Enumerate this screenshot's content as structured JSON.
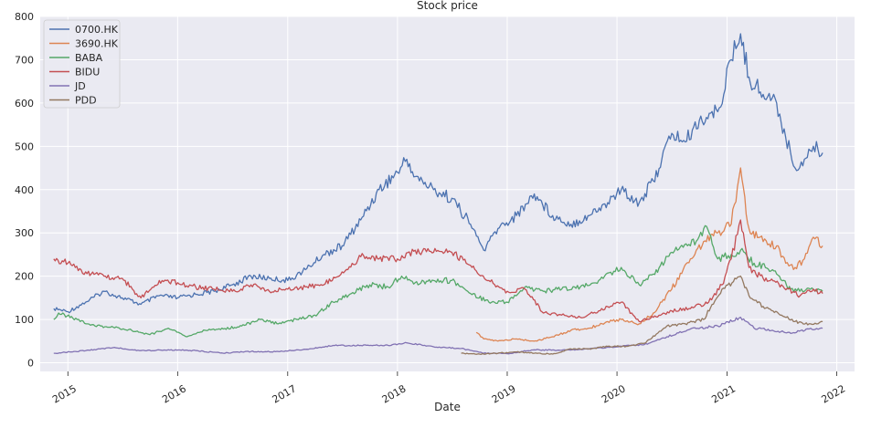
{
  "chart_data": {
    "type": "line",
    "title": "Stock price",
    "xlabel": "Date",
    "ylabel": "",
    "xlim": [
      "2014-10-01",
      "2022-03-01"
    ],
    "ylim": [
      -20,
      800
    ],
    "yticks": [
      0,
      100,
      200,
      300,
      400,
      500,
      600,
      700,
      800
    ],
    "xticks": [
      "2015-01-01",
      "2016-01-01",
      "2017-01-01",
      "2018-01-01",
      "2019-01-01",
      "2020-01-01",
      "2021-01-01",
      "2022-01-01"
    ],
    "xtick_labels": [
      "2015",
      "2016",
      "2017",
      "2018",
      "2019",
      "2020",
      "2021",
      "2022"
    ],
    "grid": true,
    "legend_position": "top-left",
    "series": [
      {
        "name": "0700.HK",
        "color": "#4c72b0",
        "points": [
          [
            "2014-11-15",
            125
          ],
          [
            "2015-01-01",
            118
          ],
          [
            "2015-03-01",
            140
          ],
          [
            "2015-05-01",
            165
          ],
          [
            "2015-07-01",
            150
          ],
          [
            "2015-09-01",
            135
          ],
          [
            "2015-11-01",
            155
          ],
          [
            "2016-01-01",
            150
          ],
          [
            "2016-03-01",
            158
          ],
          [
            "2016-05-01",
            165
          ],
          [
            "2016-07-01",
            180
          ],
          [
            "2016-09-01",
            200
          ],
          [
            "2016-11-01",
            195
          ],
          [
            "2017-01-01",
            190
          ],
          [
            "2017-03-01",
            215
          ],
          [
            "2017-05-01",
            250
          ],
          [
            "2017-07-01",
            270
          ],
          [
            "2017-09-01",
            330
          ],
          [
            "2017-11-01",
            400
          ],
          [
            "2018-01-01",
            440
          ],
          [
            "2018-02-01",
            470
          ],
          [
            "2018-03-01",
            430
          ],
          [
            "2018-05-01",
            400
          ],
          [
            "2018-07-01",
            380
          ],
          [
            "2018-09-01",
            320
          ],
          [
            "2018-10-15",
            260
          ],
          [
            "2018-12-01",
            310
          ],
          [
            "2019-02-01",
            340
          ],
          [
            "2019-04-01",
            390
          ],
          [
            "2019-06-01",
            340
          ],
          [
            "2019-08-01",
            320
          ],
          [
            "2019-10-01",
            340
          ],
          [
            "2019-12-01",
            370
          ],
          [
            "2020-01-15",
            400
          ],
          [
            "2020-03-15",
            370
          ],
          [
            "2020-05-01",
            420
          ],
          [
            "2020-07-01",
            530
          ],
          [
            "2020-08-15",
            510
          ],
          [
            "2020-10-01",
            560
          ],
          [
            "2020-12-01",
            580
          ],
          [
            "2021-01-15",
            700
          ],
          [
            "2021-02-15",
            760
          ],
          [
            "2021-03-15",
            660
          ],
          [
            "2021-05-01",
            620
          ],
          [
            "2021-06-15",
            600
          ],
          [
            "2021-07-15",
            520
          ],
          [
            "2021-08-15",
            450
          ],
          [
            "2021-09-15",
            470
          ],
          [
            "2021-10-15",
            500
          ],
          [
            "2021-11-15",
            485
          ]
        ]
      },
      {
        "name": "3690.HK",
        "color": "#dd8452",
        "points": [
          [
            "2018-09-20",
            70
          ],
          [
            "2018-10-15",
            55
          ],
          [
            "2018-12-01",
            50
          ],
          [
            "2019-02-01",
            55
          ],
          [
            "2019-04-01",
            50
          ],
          [
            "2019-06-01",
            60
          ],
          [
            "2019-08-01",
            75
          ],
          [
            "2019-10-01",
            80
          ],
          [
            "2019-12-01",
            95
          ],
          [
            "2020-01-15",
            100
          ],
          [
            "2020-03-15",
            90
          ],
          [
            "2020-05-01",
            115
          ],
          [
            "2020-07-01",
            170
          ],
          [
            "2020-09-01",
            240
          ],
          [
            "2020-10-15",
            280
          ],
          [
            "2020-12-01",
            300
          ],
          [
            "2021-01-15",
            320
          ],
          [
            "2021-02-15",
            450
          ],
          [
            "2021-03-15",
            310
          ],
          [
            "2021-05-01",
            280
          ],
          [
            "2021-06-15",
            270
          ],
          [
            "2021-07-15",
            230
          ],
          [
            "2021-08-15",
            220
          ],
          [
            "2021-09-15",
            240
          ],
          [
            "2021-10-15",
            290
          ],
          [
            "2021-11-15",
            270
          ]
        ]
      },
      {
        "name": "BABA",
        "color": "#55a868",
        "points": [
          [
            "2014-11-15",
            100
          ],
          [
            "2014-12-01",
            115
          ],
          [
            "2015-02-01",
            100
          ],
          [
            "2015-04-01",
            85
          ],
          [
            "2015-06-01",
            82
          ],
          [
            "2015-08-01",
            75
          ],
          [
            "2015-10-01",
            65
          ],
          [
            "2015-12-01",
            80
          ],
          [
            "2016-02-01",
            60
          ],
          [
            "2016-04-01",
            75
          ],
          [
            "2016-06-01",
            78
          ],
          [
            "2016-08-01",
            85
          ],
          [
            "2016-10-01",
            100
          ],
          [
            "2016-12-01",
            90
          ],
          [
            "2017-02-01",
            100
          ],
          [
            "2017-04-01",
            110
          ],
          [
            "2017-06-01",
            140
          ],
          [
            "2017-08-01",
            160
          ],
          [
            "2017-10-01",
            180
          ],
          [
            "2017-12-01",
            175
          ],
          [
            "2018-01-15",
            200
          ],
          [
            "2018-03-01",
            185
          ],
          [
            "2018-05-01",
            190
          ],
          [
            "2018-07-01",
            190
          ],
          [
            "2018-09-01",
            160
          ],
          [
            "2018-11-01",
            140
          ],
          [
            "2019-01-01",
            140
          ],
          [
            "2019-03-01",
            175
          ],
          [
            "2019-05-01",
            165
          ],
          [
            "2019-07-01",
            170
          ],
          [
            "2019-09-01",
            175
          ],
          [
            "2019-11-01",
            190
          ],
          [
            "2020-01-15",
            220
          ],
          [
            "2020-03-15",
            180
          ],
          [
            "2020-05-01",
            205
          ],
          [
            "2020-07-01",
            255
          ],
          [
            "2020-09-01",
            270
          ],
          [
            "2020-10-25",
            315
          ],
          [
            "2020-12-01",
            240
          ],
          [
            "2021-01-15",
            250
          ],
          [
            "2021-02-15",
            260
          ],
          [
            "2021-04-01",
            230
          ],
          [
            "2021-06-01",
            215
          ],
          [
            "2021-08-01",
            170
          ],
          [
            "2021-09-15",
            165
          ],
          [
            "2021-10-15",
            170
          ],
          [
            "2021-11-15",
            165
          ]
        ]
      },
      {
        "name": "BIDU",
        "color": "#c44e52",
        "points": [
          [
            "2014-11-15",
            240
          ],
          [
            "2015-01-01",
            230
          ],
          [
            "2015-03-01",
            210
          ],
          [
            "2015-05-01",
            200
          ],
          [
            "2015-07-01",
            195
          ],
          [
            "2015-09-01",
            150
          ],
          [
            "2015-11-01",
            190
          ],
          [
            "2016-01-01",
            185
          ],
          [
            "2016-03-01",
            175
          ],
          [
            "2016-05-01",
            170
          ],
          [
            "2016-07-01",
            165
          ],
          [
            "2016-09-01",
            180
          ],
          [
            "2016-11-01",
            165
          ],
          [
            "2017-01-01",
            170
          ],
          [
            "2017-03-01",
            175
          ],
          [
            "2017-05-01",
            180
          ],
          [
            "2017-07-01",
            210
          ],
          [
            "2017-09-01",
            245
          ],
          [
            "2017-11-01",
            240
          ],
          [
            "2018-01-01",
            240
          ],
          [
            "2018-03-01",
            260
          ],
          [
            "2018-05-01",
            255
          ],
          [
            "2018-07-01",
            255
          ],
          [
            "2018-09-01",
            225
          ],
          [
            "2018-11-01",
            190
          ],
          [
            "2019-01-01",
            165
          ],
          [
            "2019-03-01",
            170
          ],
          [
            "2019-05-01",
            115
          ],
          [
            "2019-07-01",
            110
          ],
          [
            "2019-09-01",
            105
          ],
          [
            "2019-11-01",
            120
          ],
          [
            "2020-01-15",
            140
          ],
          [
            "2020-03-15",
            95
          ],
          [
            "2020-05-01",
            105
          ],
          [
            "2020-07-01",
            120
          ],
          [
            "2020-09-01",
            125
          ],
          [
            "2020-11-01",
            140
          ],
          [
            "2020-12-15",
            180
          ],
          [
            "2021-01-15",
            240
          ],
          [
            "2021-02-15",
            330
          ],
          [
            "2021-03-15",
            220
          ],
          [
            "2021-05-01",
            195
          ],
          [
            "2021-07-01",
            180
          ],
          [
            "2021-09-01",
            155
          ],
          [
            "2021-10-15",
            170
          ],
          [
            "2021-11-15",
            160
          ]
        ]
      },
      {
        "name": "JD",
        "color": "#8172b3",
        "points": [
          [
            "2014-11-15",
            22
          ],
          [
            "2015-03-01",
            28
          ],
          [
            "2015-06-01",
            35
          ],
          [
            "2015-09-01",
            28
          ],
          [
            "2015-12-01",
            30
          ],
          [
            "2016-03-01",
            28
          ],
          [
            "2016-06-01",
            22
          ],
          [
            "2016-09-01",
            26
          ],
          [
            "2016-12-01",
            26
          ],
          [
            "2017-03-01",
            31
          ],
          [
            "2017-06-01",
            40
          ],
          [
            "2017-09-01",
            40
          ],
          [
            "2017-12-01",
            40
          ],
          [
            "2018-02-01",
            46
          ],
          [
            "2018-05-01",
            37
          ],
          [
            "2018-08-01",
            33
          ],
          [
            "2018-10-15",
            22
          ],
          [
            "2019-01-01",
            21
          ],
          [
            "2019-04-01",
            30
          ],
          [
            "2019-07-01",
            29
          ],
          [
            "2019-10-01",
            32
          ],
          [
            "2020-01-15",
            38
          ],
          [
            "2020-04-01",
            42
          ],
          [
            "2020-06-15",
            60
          ],
          [
            "2020-09-01",
            78
          ],
          [
            "2020-12-01",
            85
          ],
          [
            "2021-02-15",
            105
          ],
          [
            "2021-04-01",
            80
          ],
          [
            "2021-06-01",
            75
          ],
          [
            "2021-08-01",
            68
          ],
          [
            "2021-10-01",
            78
          ],
          [
            "2021-11-15",
            80
          ]
        ]
      },
      {
        "name": "PDD",
        "color": "#937860",
        "points": [
          [
            "2018-08-01",
            22
          ],
          [
            "2018-10-01",
            20
          ],
          [
            "2018-12-01",
            22
          ],
          [
            "2019-02-01",
            25
          ],
          [
            "2019-04-01",
            22
          ],
          [
            "2019-06-01",
            20
          ],
          [
            "2019-08-01",
            32
          ],
          [
            "2019-10-01",
            32
          ],
          [
            "2019-12-01",
            38
          ],
          [
            "2020-02-01",
            38
          ],
          [
            "2020-04-01",
            45
          ],
          [
            "2020-06-15",
            85
          ],
          [
            "2020-08-15",
            90
          ],
          [
            "2020-10-15",
            100
          ],
          [
            "2020-12-15",
            170
          ],
          [
            "2021-02-15",
            200
          ],
          [
            "2021-03-15",
            155
          ],
          [
            "2021-05-01",
            130
          ],
          [
            "2021-07-01",
            110
          ],
          [
            "2021-08-15",
            95
          ],
          [
            "2021-10-01",
            90
          ],
          [
            "2021-11-15",
            95
          ]
        ]
      }
    ]
  }
}
